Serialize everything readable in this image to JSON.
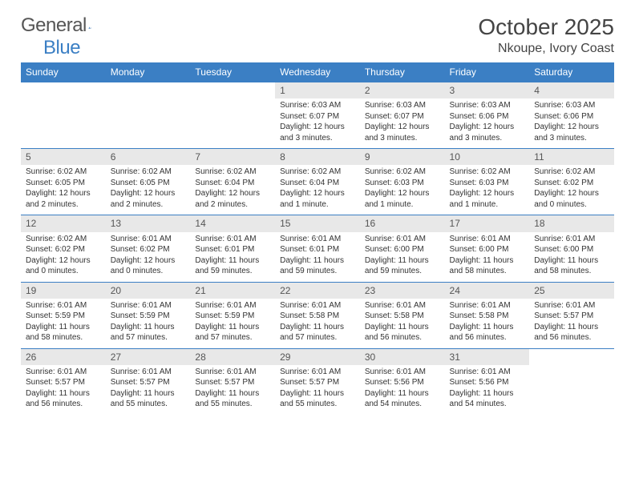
{
  "logo": {
    "text1": "General",
    "text2": "Blue"
  },
  "title": "October 2025",
  "location": "Nkoupe, Ivory Coast",
  "colors": {
    "header_bg": "#3b7fc4",
    "header_text": "#ffffff",
    "daynum_bg": "#e8e8e8",
    "row_border": "#3b7fc4",
    "page_bg": "#ffffff",
    "text": "#333333"
  },
  "fonts": {
    "title_size": 28,
    "location_size": 16,
    "th_size": 12,
    "cell_size": 10
  },
  "weekdays": [
    "Sunday",
    "Monday",
    "Tuesday",
    "Wednesday",
    "Thursday",
    "Friday",
    "Saturday"
  ],
  "weeks": [
    [
      {
        "empty": true
      },
      {
        "empty": true
      },
      {
        "empty": true
      },
      {
        "n": "1",
        "sr": "Sunrise: 6:03 AM",
        "ss": "Sunset: 6:07 PM",
        "dl": "Daylight: 12 hours and 3 minutes."
      },
      {
        "n": "2",
        "sr": "Sunrise: 6:03 AM",
        "ss": "Sunset: 6:07 PM",
        "dl": "Daylight: 12 hours and 3 minutes."
      },
      {
        "n": "3",
        "sr": "Sunrise: 6:03 AM",
        "ss": "Sunset: 6:06 PM",
        "dl": "Daylight: 12 hours and 3 minutes."
      },
      {
        "n": "4",
        "sr": "Sunrise: 6:03 AM",
        "ss": "Sunset: 6:06 PM",
        "dl": "Daylight: 12 hours and 3 minutes."
      }
    ],
    [
      {
        "n": "5",
        "sr": "Sunrise: 6:02 AM",
        "ss": "Sunset: 6:05 PM",
        "dl": "Daylight: 12 hours and 2 minutes."
      },
      {
        "n": "6",
        "sr": "Sunrise: 6:02 AM",
        "ss": "Sunset: 6:05 PM",
        "dl": "Daylight: 12 hours and 2 minutes."
      },
      {
        "n": "7",
        "sr": "Sunrise: 6:02 AM",
        "ss": "Sunset: 6:04 PM",
        "dl": "Daylight: 12 hours and 2 minutes."
      },
      {
        "n": "8",
        "sr": "Sunrise: 6:02 AM",
        "ss": "Sunset: 6:04 PM",
        "dl": "Daylight: 12 hours and 1 minute."
      },
      {
        "n": "9",
        "sr": "Sunrise: 6:02 AM",
        "ss": "Sunset: 6:03 PM",
        "dl": "Daylight: 12 hours and 1 minute."
      },
      {
        "n": "10",
        "sr": "Sunrise: 6:02 AM",
        "ss": "Sunset: 6:03 PM",
        "dl": "Daylight: 12 hours and 1 minute."
      },
      {
        "n": "11",
        "sr": "Sunrise: 6:02 AM",
        "ss": "Sunset: 6:02 PM",
        "dl": "Daylight: 12 hours and 0 minutes."
      }
    ],
    [
      {
        "n": "12",
        "sr": "Sunrise: 6:02 AM",
        "ss": "Sunset: 6:02 PM",
        "dl": "Daylight: 12 hours and 0 minutes."
      },
      {
        "n": "13",
        "sr": "Sunrise: 6:01 AM",
        "ss": "Sunset: 6:02 PM",
        "dl": "Daylight: 12 hours and 0 minutes."
      },
      {
        "n": "14",
        "sr": "Sunrise: 6:01 AM",
        "ss": "Sunset: 6:01 PM",
        "dl": "Daylight: 11 hours and 59 minutes."
      },
      {
        "n": "15",
        "sr": "Sunrise: 6:01 AM",
        "ss": "Sunset: 6:01 PM",
        "dl": "Daylight: 11 hours and 59 minutes."
      },
      {
        "n": "16",
        "sr": "Sunrise: 6:01 AM",
        "ss": "Sunset: 6:00 PM",
        "dl": "Daylight: 11 hours and 59 minutes."
      },
      {
        "n": "17",
        "sr": "Sunrise: 6:01 AM",
        "ss": "Sunset: 6:00 PM",
        "dl": "Daylight: 11 hours and 58 minutes."
      },
      {
        "n": "18",
        "sr": "Sunrise: 6:01 AM",
        "ss": "Sunset: 6:00 PM",
        "dl": "Daylight: 11 hours and 58 minutes."
      }
    ],
    [
      {
        "n": "19",
        "sr": "Sunrise: 6:01 AM",
        "ss": "Sunset: 5:59 PM",
        "dl": "Daylight: 11 hours and 58 minutes."
      },
      {
        "n": "20",
        "sr": "Sunrise: 6:01 AM",
        "ss": "Sunset: 5:59 PM",
        "dl": "Daylight: 11 hours and 57 minutes."
      },
      {
        "n": "21",
        "sr": "Sunrise: 6:01 AM",
        "ss": "Sunset: 5:59 PM",
        "dl": "Daylight: 11 hours and 57 minutes."
      },
      {
        "n": "22",
        "sr": "Sunrise: 6:01 AM",
        "ss": "Sunset: 5:58 PM",
        "dl": "Daylight: 11 hours and 57 minutes."
      },
      {
        "n": "23",
        "sr": "Sunrise: 6:01 AM",
        "ss": "Sunset: 5:58 PM",
        "dl": "Daylight: 11 hours and 56 minutes."
      },
      {
        "n": "24",
        "sr": "Sunrise: 6:01 AM",
        "ss": "Sunset: 5:58 PM",
        "dl": "Daylight: 11 hours and 56 minutes."
      },
      {
        "n": "25",
        "sr": "Sunrise: 6:01 AM",
        "ss": "Sunset: 5:57 PM",
        "dl": "Daylight: 11 hours and 56 minutes."
      }
    ],
    [
      {
        "n": "26",
        "sr": "Sunrise: 6:01 AM",
        "ss": "Sunset: 5:57 PM",
        "dl": "Daylight: 11 hours and 56 minutes."
      },
      {
        "n": "27",
        "sr": "Sunrise: 6:01 AM",
        "ss": "Sunset: 5:57 PM",
        "dl": "Daylight: 11 hours and 55 minutes."
      },
      {
        "n": "28",
        "sr": "Sunrise: 6:01 AM",
        "ss": "Sunset: 5:57 PM",
        "dl": "Daylight: 11 hours and 55 minutes."
      },
      {
        "n": "29",
        "sr": "Sunrise: 6:01 AM",
        "ss": "Sunset: 5:57 PM",
        "dl": "Daylight: 11 hours and 55 minutes."
      },
      {
        "n": "30",
        "sr": "Sunrise: 6:01 AM",
        "ss": "Sunset: 5:56 PM",
        "dl": "Daylight: 11 hours and 54 minutes."
      },
      {
        "n": "31",
        "sr": "Sunrise: 6:01 AM",
        "ss": "Sunset: 5:56 PM",
        "dl": "Daylight: 11 hours and 54 minutes."
      },
      {
        "empty": true
      }
    ]
  ]
}
